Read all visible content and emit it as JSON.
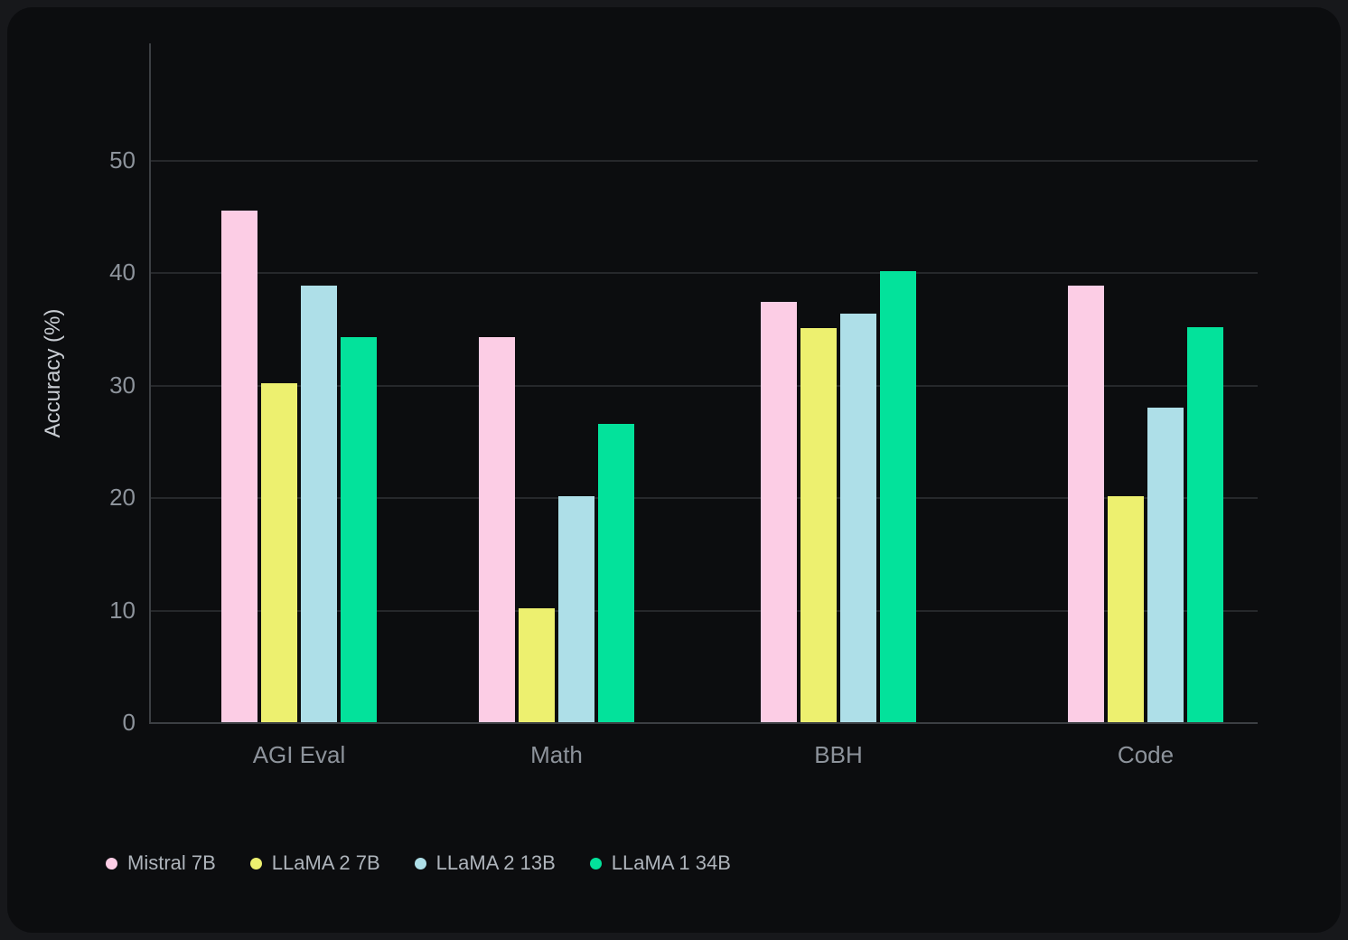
{
  "chart_data": {
    "type": "bar",
    "title": "",
    "categories": [
      "AGI Eval",
      "Math",
      "BBH",
      "Code"
    ],
    "series": [
      {
        "name": "Mistral 7B",
        "color": "#FCCDE5",
        "values": [
          45.5,
          34.2,
          37.4,
          38.8
        ]
      },
      {
        "name": "LLaMA 2 7B",
        "color": "#EDF06F",
        "values": [
          30.1,
          10.1,
          35.0,
          20.1
        ]
      },
      {
        "name": "LLaMA 2 13B",
        "color": "#AEDFE8",
        "values": [
          38.8,
          20.1,
          36.3,
          28.0
        ]
      },
      {
        "name": "LLaMA 1 34B",
        "color": "#03E29B",
        "values": [
          34.2,
          26.5,
          40.1,
          35.1
        ]
      }
    ],
    "xlabel": "",
    "ylabel": "Accuracy (%)",
    "ylim": [
      0,
      60.3
    ],
    "yticks": [
      0,
      10,
      20,
      30,
      40,
      50
    ],
    "grid": true,
    "legend_position": "bottom-left"
  },
  "colors": {
    "page_bg": "#17181B",
    "card_bg": "#0C0D0F",
    "gridline": "#26282B",
    "axis_line": "#3C3F43",
    "tick_text": "#8D939B",
    "category_text": "#8D939B",
    "legend_text": "#AEB4BB",
    "axis_title_text": "#C9CDD3"
  }
}
